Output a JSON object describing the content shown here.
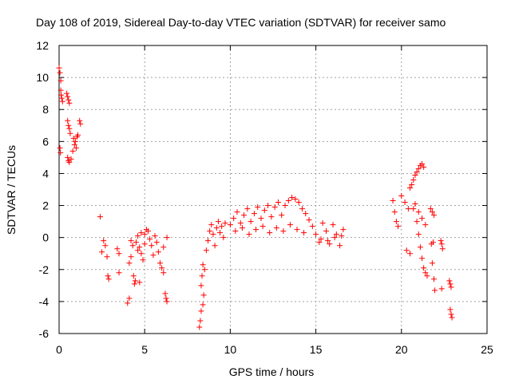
{
  "chart_data": {
    "type": "scatter",
    "title": "Day 108 of 2019, Sidereal Day-to-day VTEC variation (SDTVAR) for receiver samo",
    "xlabel": "GPS time / hours",
    "ylabel": "SDTVAR / TECUs",
    "xlim": [
      0,
      25
    ],
    "ylim": [
      -6,
      12
    ],
    "xticks": [
      "0",
      "5",
      "10",
      "15",
      "20",
      "25"
    ],
    "yticks": [
      "-6",
      "-4",
      "-2",
      "0",
      "2",
      "4",
      "6",
      "8",
      "10",
      "12"
    ],
    "grid": true,
    "marker": "+",
    "color": "#ff0000",
    "series": [
      {
        "name": "SDTVAR",
        "x": [
          0.0,
          0.05,
          0.1,
          0.1,
          0.12,
          0.15,
          0.2,
          0.05,
          0.08,
          0.45,
          0.5,
          0.55,
          0.6,
          0.5,
          0.55,
          0.6,
          0.65,
          0.5,
          0.55,
          0.6,
          0.7,
          0.8,
          0.85,
          0.9,
          0.95,
          1.0,
          1.05,
          1.1,
          1.2,
          1.25,
          2.4,
          2.5,
          2.6,
          2.7,
          2.8,
          2.85,
          2.9,
          3.4,
          3.5,
          3.5,
          4.0,
          4.1,
          4.1,
          4.2,
          4.2,
          4.3,
          4.35,
          4.4,
          4.45,
          4.5,
          4.6,
          4.6,
          4.7,
          4.7,
          4.8,
          4.8,
          4.9,
          5.0,
          5.0,
          5.1,
          5.2,
          5.3,
          5.4,
          5.5,
          5.6,
          5.7,
          5.8,
          5.9,
          6.0,
          6.1,
          6.2,
          6.25,
          6.3,
          6.3,
          6.1,
          8.2,
          8.25,
          8.3,
          8.3,
          8.35,
          8.4,
          8.4,
          8.45,
          8.5,
          8.6,
          8.7,
          8.8,
          8.9,
          9.0,
          9.1,
          9.2,
          9.3,
          9.4,
          9.5,
          9.6,
          9.7,
          10.0,
          10.2,
          10.4,
          10.6,
          10.8,
          11.0,
          11.2,
          11.4,
          11.6,
          11.8,
          12.0,
          12.2,
          12.4,
          12.6,
          12.8,
          13.0,
          13.2,
          13.4,
          13.6,
          13.8,
          14.0,
          14.2,
          14.4,
          10.3,
          10.7,
          11.1,
          11.5,
          11.9,
          12.3,
          12.7,
          13.1,
          13.5,
          13.9,
          14.3,
          14.6,
          14.8,
          15.0,
          15.2,
          15.4,
          15.6,
          15.8,
          16.0,
          16.2,
          16.4,
          16.6,
          15.3,
          15.7,
          16.1,
          16.5,
          19.5,
          19.6,
          19.7,
          19.8,
          20.0,
          20.2,
          20.4,
          20.5,
          20.6,
          20.7,
          20.8,
          20.9,
          21.0,
          21.1,
          21.2,
          21.3,
          20.3,
          20.5,
          20.7,
          20.9,
          21.0,
          21.1,
          21.2,
          21.3,
          21.4,
          21.5,
          20.8,
          21.0,
          21.2,
          21.4,
          21.7,
          21.8,
          21.9,
          21.75,
          21.85,
          21.8,
          21.9,
          21.95,
          22.3,
          22.35,
          22.4,
          22.35,
          22.8,
          22.85,
          22.9,
          22.85,
          22.9,
          22.95
        ],
        "y": [
          10.6,
          10.3,
          9.8,
          9.2,
          8.9,
          8.7,
          8.5,
          5.6,
          5.3,
          9.0,
          8.8,
          8.6,
          8.4,
          7.3,
          7.0,
          6.8,
          6.5,
          5.0,
          4.8,
          4.7,
          4.9,
          5.4,
          6.2,
          5.8,
          6.0,
          5.6,
          6.3,
          6.4,
          7.3,
          7.1,
          1.3,
          -0.9,
          -0.2,
          -0.5,
          -1.2,
          -2.4,
          -2.6,
          -0.7,
          -1.0,
          -2.2,
          -4.1,
          -3.8,
          -1.6,
          -1.2,
          -0.2,
          -0.5,
          -2.4,
          -2.9,
          -2.7,
          -0.3,
          0.1,
          -0.8,
          -2.8,
          -0.6,
          0.3,
          -1.0,
          -1.4,
          0.2,
          -0.4,
          0.5,
          0.4,
          -0.1,
          -0.5,
          -1.1,
          0.1,
          -0.3,
          -0.9,
          -1.6,
          -1.9,
          -2.2,
          -3.5,
          -3.8,
          -4.0,
          0.0,
          -0.6,
          -5.6,
          -5.2,
          -4.6,
          -3.0,
          -2.4,
          -1.7,
          -4.2,
          -3.6,
          -2.0,
          -0.8,
          -0.2,
          0.4,
          0.8,
          0.2,
          -0.5,
          0.6,
          1.0,
          0.3,
          0.7,
          0.0,
          0.9,
          0.8,
          1.2,
          1.6,
          0.9,
          1.4,
          1.8,
          1.0,
          1.5,
          1.9,
          1.2,
          1.7,
          2.0,
          1.3,
          1.9,
          2.2,
          1.4,
          2.0,
          2.3,
          2.5,
          2.4,
          2.2,
          1.8,
          1.5,
          0.4,
          0.6,
          0.2,
          0.5,
          0.7,
          0.3,
          0.6,
          0.4,
          0.8,
          0.5,
          0.3,
          1.1,
          0.7,
          0.2,
          -0.3,
          0.9,
          0.4,
          -0.4,
          0.8,
          0.2,
          -0.5,
          0.5,
          -0.1,
          -0.2,
          0.0,
          0.1,
          2.3,
          1.6,
          1.0,
          0.7,
          2.6,
          2.2,
          1.8,
          3.1,
          3.3,
          3.6,
          3.9,
          4.1,
          4.3,
          4.5,
          4.6,
          4.4,
          -0.8,
          -1.0,
          1.8,
          1.0,
          0.2,
          -0.6,
          -1.3,
          -1.9,
          -2.2,
          -2.4,
          2.1,
          1.6,
          1.2,
          0.8,
          1.8,
          1.6,
          1.4,
          -0.4,
          -0.3,
          -1.6,
          -2.6,
          -3.3,
          -0.2,
          -0.4,
          -0.7,
          -3.2,
          -2.7,
          -2.9,
          -3.1,
          -4.5,
          -4.8,
          -5.0
        ]
      }
    ]
  }
}
